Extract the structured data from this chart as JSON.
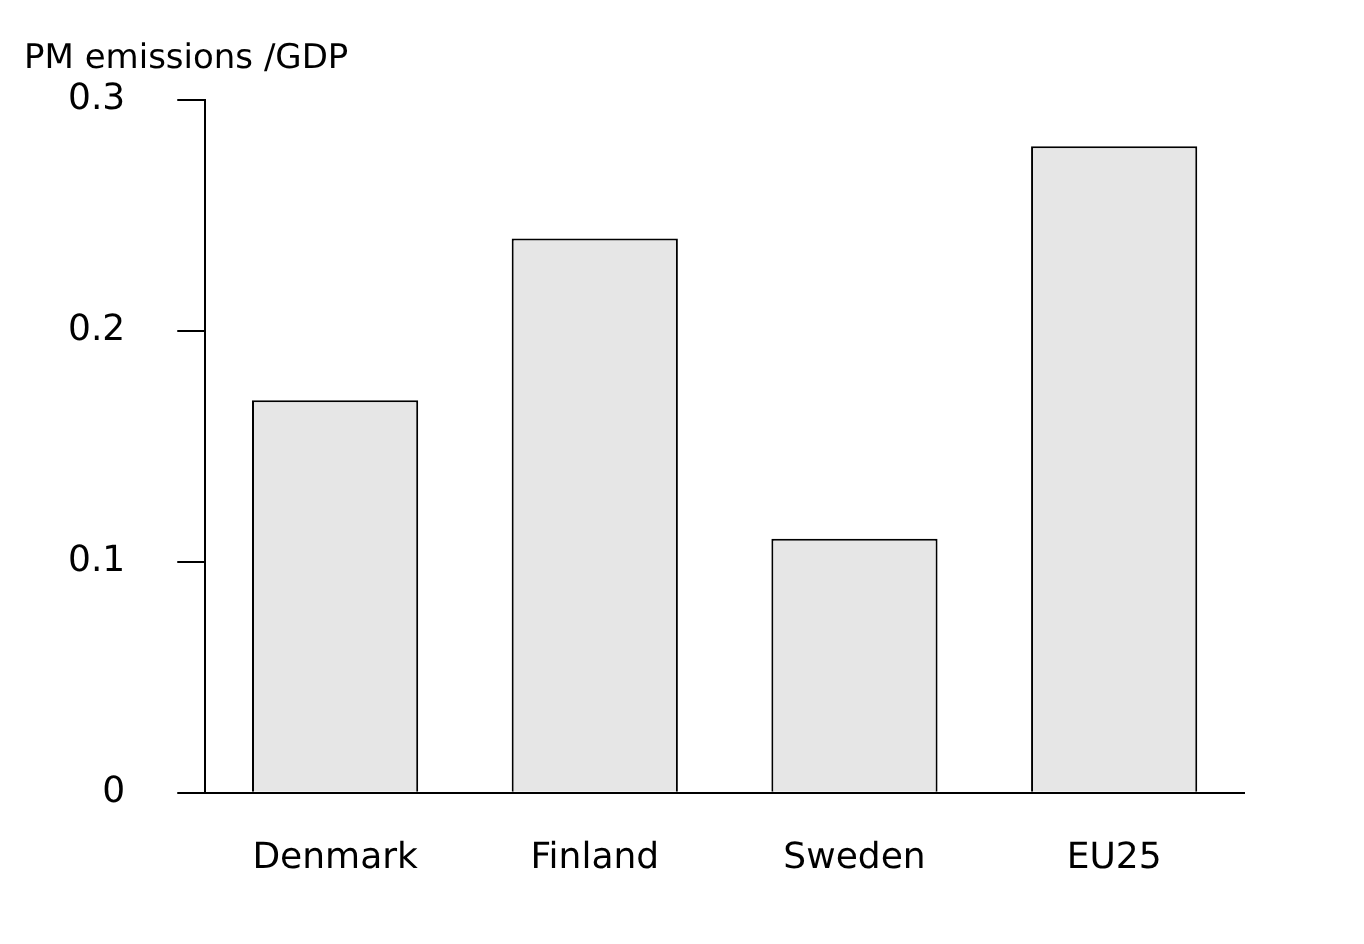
{
  "chart_data": {
    "type": "bar",
    "ylabel": "PM emissions /GDP",
    "categories": [
      "Denmark",
      "Finland",
      "Sweden",
      "EU25"
    ],
    "values": [
      0.17,
      0.24,
      0.11,
      0.28
    ],
    "color": "#e6e6e6",
    "ylim": [
      0,
      0.3
    ],
    "yticks": [
      0,
      0.1,
      0.2,
      0.3
    ],
    "grid": false,
    "legend": false
  }
}
